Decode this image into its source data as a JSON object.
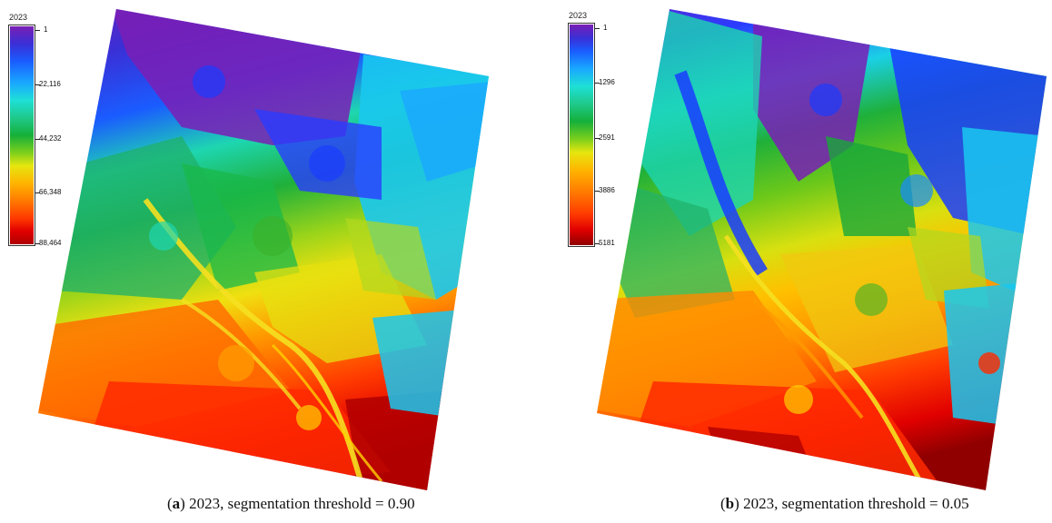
{
  "panels": [
    {
      "id": "a",
      "legend": {
        "year": "2023",
        "ticks": [
          "1",
          "22,116",
          "44,232",
          "66,348",
          "88,464"
        ]
      },
      "caption": {
        "letter": "a",
        "text": "2023, segmentation threshold = 0.90"
      }
    },
    {
      "id": "b",
      "legend": {
        "year": "2023",
        "ticks": [
          "1",
          "1296",
          "2591",
          "3886",
          "5181"
        ]
      },
      "caption": {
        "letter": "b",
        "text": "2023, segmentation threshold = 0.05"
      }
    }
  ],
  "colors": {
    "purple": "#7a1fb5",
    "blue": "#1a3cff",
    "cyan": "#19c8f0",
    "teal": "#1ed6b0",
    "green": "#1fb03a",
    "lime": "#9ad41a",
    "yellow": "#f0e010",
    "orange": "#ff9a00",
    "red": "#ff2a00",
    "darkred": "#b00000"
  }
}
